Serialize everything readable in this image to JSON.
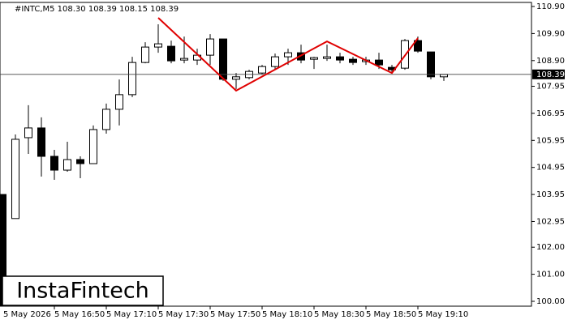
{
  "chart_data": {
    "type": "candlestick",
    "title": "#INTC,M5  108.30 108.39 108.15 108.39",
    "watermark": "InstaFintech",
    "categories": [
      null,
      null,
      null,
      null,
      "5 May 16:50",
      null,
      null,
      null,
      "5 May 17:10",
      null,
      null,
      null,
      "5 May 17:30",
      null,
      null,
      null,
      "5 May 17:50",
      null,
      null,
      null,
      "5 May 18:10",
      null,
      null,
      null,
      "5 May 18:30",
      null,
      null,
      null,
      "5 May 18:50",
      null,
      null,
      null,
      "5 May 19:10",
      null,
      null
    ],
    "first_label": "5 May 2026",
    "open": [
      103.95,
      103.06,
      106.05,
      106.41,
      105.36,
      104.85,
      105.24,
      105.09,
      106.35,
      107.1,
      107.64,
      108.83,
      109.4,
      109.43,
      108.92,
      108.92,
      109.1,
      109.7,
      108.21,
      108.27,
      108.44,
      108.68,
      109.04,
      109.19,
      108.95,
      108.98,
      109.04,
      108.95,
      108.86,
      108.92,
      108.65,
      108.62,
      109.64,
      109.22,
      108.3
    ],
    "high": [
      103.95,
      106.17,
      107.25,
      106.8,
      105.6,
      105.9,
      105.36,
      106.5,
      107.31,
      108.2,
      109.04,
      109.58,
      110.24,
      109.64,
      109.79,
      109.34,
      109.88,
      109.7,
      108.44,
      108.56,
      108.74,
      109.16,
      109.34,
      109.49,
      109.04,
      109.49,
      109.19,
      109.04,
      109.04,
      109.19,
      108.74,
      109.7,
      109.79,
      109.22,
      108.39
    ],
    "low": [
      99.5,
      103.06,
      105.45,
      104.61,
      104.49,
      104.79,
      104.55,
      105.09,
      106.2,
      106.5,
      107.55,
      108.8,
      109.19,
      108.8,
      108.8,
      108.74,
      108.74,
      108.15,
      107.85,
      108.21,
      108.39,
      108.56,
      108.74,
      108.8,
      108.59,
      108.89,
      108.8,
      108.74,
      108.74,
      108.59,
      108.44,
      108.56,
      109.19,
      108.21,
      108.15
    ],
    "close": [
      99.6,
      105.99,
      106.41,
      105.36,
      104.85,
      105.24,
      105.09,
      106.35,
      107.1,
      107.64,
      108.83,
      109.4,
      109.52,
      108.89,
      108.98,
      109.1,
      109.7,
      108.21,
      108.3,
      108.5,
      108.68,
      109.04,
      109.19,
      108.92,
      109.01,
      109.04,
      108.92,
      108.83,
      108.92,
      108.74,
      108.56,
      109.64,
      109.25,
      108.3,
      108.39
    ],
    "up_color": "#ffffff",
    "down_color": "#000000",
    "pattern": {
      "color": "#e00000",
      "x": [
        12,
        18,
        25,
        30,
        32
      ],
      "values": [
        110.48,
        107.79,
        109.61,
        108.44,
        109.73
      ]
    },
    "current_price": {
      "value": 108.39,
      "label": "108.39"
    },
    "ylim": [
      99.82,
      111.05
    ],
    "yticks": [
      {
        "value": 110.9,
        "label": "110.90"
      },
      {
        "value": 109.9,
        "label": "109.90"
      },
      {
        "value": 108.9,
        "label": "108.90"
      },
      {
        "value": 107.95,
        "label": "107.95"
      },
      {
        "value": 106.95,
        "label": "106.95"
      },
      {
        "value": 105.95,
        "label": "105.95"
      },
      {
        "value": 104.95,
        "label": "104.95"
      },
      {
        "value": 103.95,
        "label": "103.95"
      },
      {
        "value": 102.95,
        "label": "102.95"
      },
      {
        "value": 102,
        "label": "102.00"
      },
      {
        "value": 101,
        "label": "101.00"
      },
      {
        "value": 100,
        "label": "100.00"
      }
    ]
  }
}
